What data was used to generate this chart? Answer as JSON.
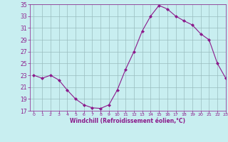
{
  "x": [
    0,
    1,
    2,
    3,
    4,
    5,
    6,
    7,
    8,
    9,
    10,
    11,
    12,
    13,
    14,
    15,
    16,
    17,
    18,
    19,
    20,
    21,
    22,
    23
  ],
  "y": [
    23,
    22.5,
    23,
    22.2,
    20.5,
    19,
    18,
    17.5,
    17.4,
    18.0,
    20.5,
    24.0,
    27.0,
    30.5,
    33.0,
    34.8,
    34.2,
    33.0,
    32.2,
    31.5,
    30.0,
    29.0,
    25.0,
    22.5
  ],
  "line_color": "#8B1A8B",
  "marker_color": "#8B1A8B",
  "bg_color": "#C8EEF0",
  "grid_color": "#9ABCBE",
  "xlabel": "Windchill (Refroidissement éolien,°C)",
  "xlabel_color": "#8B1A8B",
  "tick_color": "#8B1A8B",
  "ylim": [
    17,
    35
  ],
  "xlim": [
    -0.5,
    23
  ],
  "yticks": [
    17,
    19,
    21,
    23,
    25,
    27,
    29,
    31,
    33,
    35
  ],
  "xticks": [
    0,
    1,
    2,
    3,
    4,
    5,
    6,
    7,
    8,
    9,
    10,
    11,
    12,
    13,
    14,
    15,
    16,
    17,
    18,
    19,
    20,
    21,
    22,
    23
  ],
  "figsize": [
    3.2,
    2.0
  ],
  "dpi": 100
}
